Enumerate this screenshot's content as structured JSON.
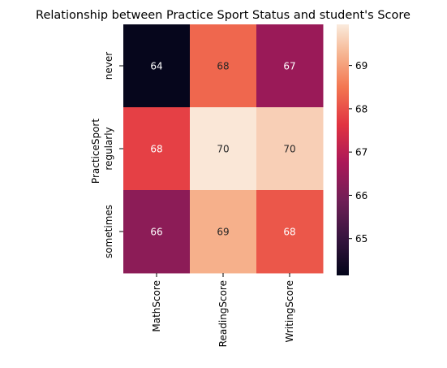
{
  "chart_data": {
    "type": "heatmap",
    "title": "Relationship between Practice Sport Status and student's Score",
    "xlabel": "",
    "ylabel": "PracticeSport",
    "rows": [
      "never",
      "regularly",
      "sometimes"
    ],
    "columns": [
      "MathScore",
      "ReadingScore",
      "WritingScore"
    ],
    "values": [
      [
        64.2,
        68.3,
        66.5
      ],
      [
        67.8,
        69.9,
        69.6
      ],
      [
        66.3,
        69.2,
        68.1
      ]
    ],
    "cell_labels": [
      [
        "64",
        "68",
        "67"
      ],
      [
        "68",
        "70",
        "70"
      ],
      [
        "66",
        "69",
        "68"
      ]
    ],
    "colorbar": {
      "min": 64.15,
      "max": 69.95,
      "ticks": [
        "65",
        "66",
        "67",
        "68",
        "69"
      ],
      "colormap": "rocket"
    },
    "grid": false
  }
}
